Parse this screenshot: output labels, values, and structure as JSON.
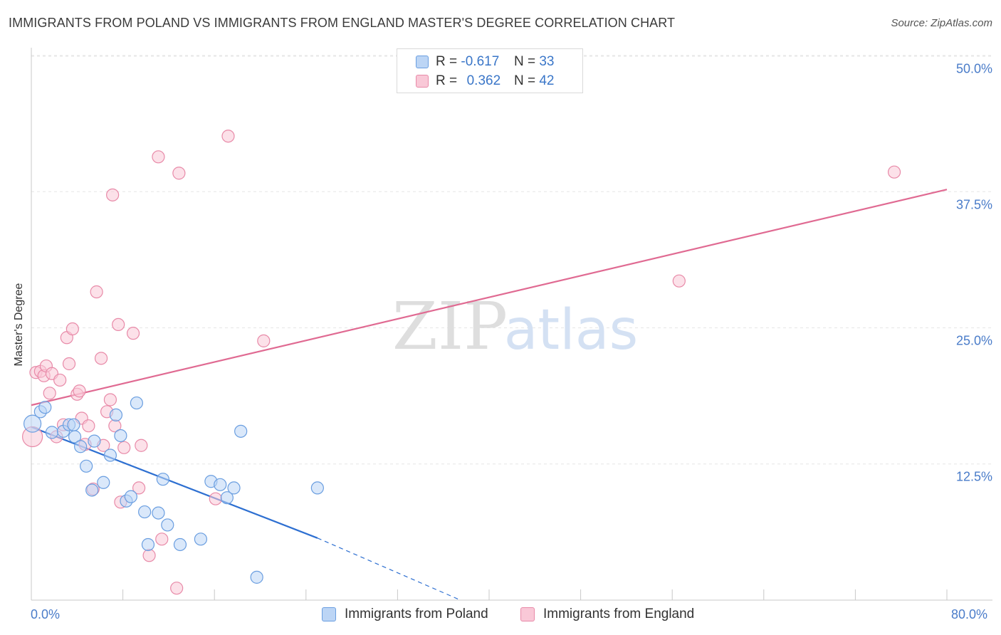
{
  "header": {
    "title": "IMMIGRANTS FROM POLAND VS IMMIGRANTS FROM ENGLAND MASTER'S DEGREE CORRELATION CHART",
    "source": "Source: ZipAtlas.com"
  },
  "watermark": {
    "zip": "ZIP",
    "atlas": "atlas"
  },
  "legend": {
    "rows": [
      {
        "r_label": "R =",
        "r_value": "-0.617",
        "n_label": "N =",
        "n_value": "33"
      },
      {
        "r_label": "R =",
        "r_value": "0.362",
        "n_label": "N =",
        "n_value": "42"
      }
    ]
  },
  "colors": {
    "poland_fill": "#bcd5f5",
    "poland_stroke": "#6a9ee0",
    "poland_line": "#2d6fd1",
    "england_fill": "#f9c8d7",
    "england_stroke": "#e88aa8",
    "england_line": "#e06a92",
    "tick_label": "#4a7cc9",
    "grid": "#e6e6e6"
  },
  "chart_data": {
    "type": "scatter",
    "title": "IMMIGRANTS FROM POLAND VS IMMIGRANTS FROM ENGLAND MASTER'S DEGREE CORRELATION CHART",
    "xlabel": "",
    "ylabel": "Master's Degree",
    "xlim": [
      0,
      80
    ],
    "ylim": [
      0,
      50
    ],
    "x_tick_labels": [
      "0.0%",
      "80.0%"
    ],
    "y_ticks": [
      12.5,
      25.0,
      37.5,
      50.0
    ],
    "y_tick_labels": [
      "12.5%",
      "25.0%",
      "37.5%",
      "50.0%"
    ],
    "legend_position": "top-center",
    "series": [
      {
        "name": "Immigrants from Poland",
        "points": [
          [
            0.1,
            16.2
          ],
          [
            0.8,
            17.3
          ],
          [
            1.2,
            17.7
          ],
          [
            1.8,
            15.4
          ],
          [
            2.8,
            15.5
          ],
          [
            3.3,
            16.1
          ],
          [
            3.7,
            16.1
          ],
          [
            3.8,
            15.0
          ],
          [
            4.3,
            14.1
          ],
          [
            4.8,
            12.3
          ],
          [
            5.5,
            14.6
          ],
          [
            5.3,
            10.1
          ],
          [
            6.3,
            10.8
          ],
          [
            6.9,
            13.3
          ],
          [
            7.4,
            17.0
          ],
          [
            7.8,
            15.1
          ],
          [
            8.3,
            9.1
          ],
          [
            8.7,
            9.5
          ],
          [
            9.2,
            18.1
          ],
          [
            9.9,
            8.1
          ],
          [
            10.2,
            5.1
          ],
          [
            11.1,
            8.0
          ],
          [
            11.5,
            11.1
          ],
          [
            11.9,
            6.9
          ],
          [
            13.0,
            5.1
          ],
          [
            14.8,
            5.6
          ],
          [
            15.7,
            10.9
          ],
          [
            16.5,
            10.6
          ],
          [
            17.1,
            9.4
          ],
          [
            17.7,
            10.3
          ],
          [
            18.3,
            15.5
          ],
          [
            19.7,
            2.1
          ],
          [
            25.0,
            10.3
          ]
        ],
        "trend": {
          "x0": 0,
          "y0": 15.9,
          "x1": 25.0,
          "y1": 5.7,
          "dashed_to_x": 37.5,
          "dashed_to_y": 0
        }
      },
      {
        "name": "Immigrants from England",
        "points": [
          [
            0.1,
            15.0
          ],
          [
            0.4,
            20.9
          ],
          [
            0.8,
            21.0
          ],
          [
            1.1,
            20.6
          ],
          [
            1.3,
            21.5
          ],
          [
            1.6,
            19.0
          ],
          [
            1.8,
            20.8
          ],
          [
            2.2,
            15.0
          ],
          [
            2.5,
            20.2
          ],
          [
            2.8,
            16.1
          ],
          [
            3.1,
            24.1
          ],
          [
            3.3,
            21.7
          ],
          [
            3.6,
            24.9
          ],
          [
            4.0,
            18.9
          ],
          [
            4.2,
            19.2
          ],
          [
            4.4,
            16.7
          ],
          [
            4.7,
            14.3
          ],
          [
            5.0,
            16.0
          ],
          [
            5.4,
            10.2
          ],
          [
            5.7,
            28.3
          ],
          [
            6.1,
            22.2
          ],
          [
            6.3,
            14.2
          ],
          [
            6.6,
            17.3
          ],
          [
            6.9,
            18.4
          ],
          [
            7.1,
            37.2
          ],
          [
            7.3,
            16.0
          ],
          [
            7.6,
            25.3
          ],
          [
            7.8,
            9.0
          ],
          [
            8.1,
            14.0
          ],
          [
            8.9,
            24.5
          ],
          [
            9.4,
            10.3
          ],
          [
            9.6,
            14.2
          ],
          [
            10.3,
            4.1
          ],
          [
            11.1,
            40.7
          ],
          [
            11.4,
            5.6
          ],
          [
            12.7,
            1.1
          ],
          [
            12.9,
            39.2
          ],
          [
            16.1,
            9.3
          ],
          [
            17.2,
            42.6
          ],
          [
            20.3,
            23.8
          ],
          [
            56.6,
            29.3
          ],
          [
            75.4,
            39.3
          ]
        ],
        "trend": {
          "x0": 0,
          "y0": 17.9,
          "x1": 80,
          "y1": 37.7
        }
      }
    ]
  }
}
